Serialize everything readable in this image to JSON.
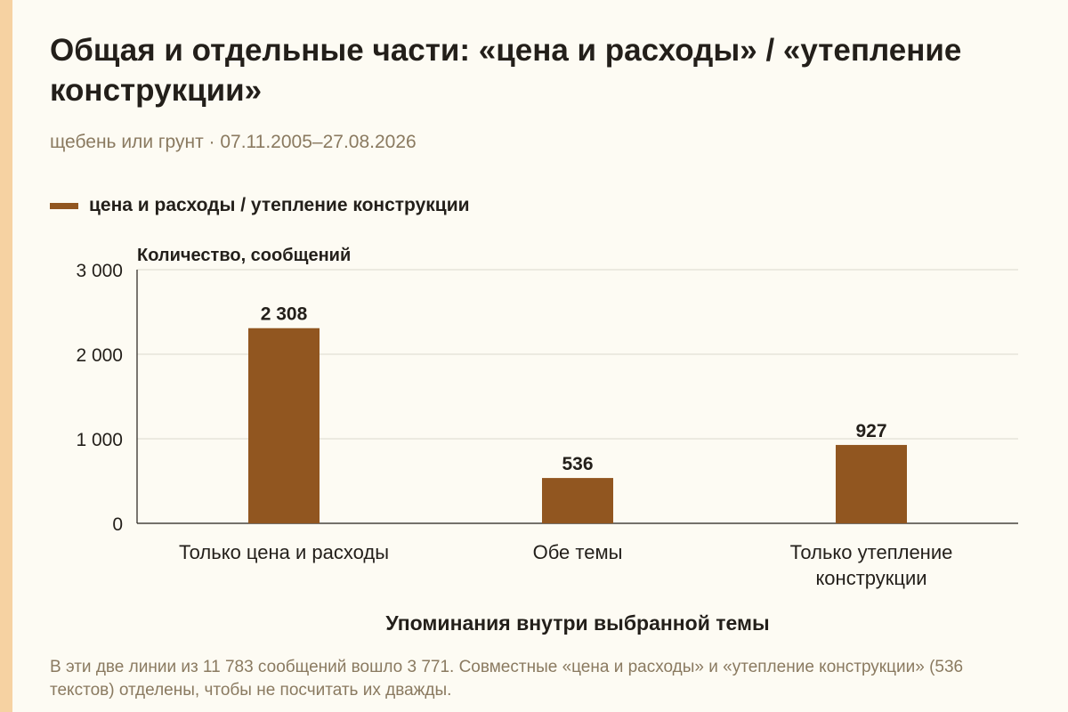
{
  "title": "Общая и отдельные части: «цена и расходы» / «утепление конструкции»",
  "subtitle": "щебень или грунт · 07.11.2005–27.08.2026",
  "colors": {
    "bar": "#915620",
    "stripe": "#f6d2a2",
    "background": "#fdfbf3"
  },
  "chart_data": {
    "type": "bar",
    "categories": [
      "Только цена и расходы",
      "Обе темы",
      "Только утепление конструкции"
    ],
    "category_lines": [
      [
        "Только цена и расходы"
      ],
      [
        "Обе темы"
      ],
      [
        "Только утепление",
        "конструкции"
      ]
    ],
    "series": [
      {
        "name": "цена и расходы / утепление конструкции",
        "values": [
          2308,
          536,
          927
        ]
      }
    ],
    "value_labels": [
      "2 308",
      "536",
      "927"
    ],
    "ylabel": "Количество, сообщений",
    "xlabel": "Упоминания внутри выбранной темы",
    "ylim": [
      0,
      3000
    ],
    "yticks": [
      0,
      1000,
      2000,
      3000
    ],
    "ytick_labels": [
      "0",
      "1 000",
      "2 000",
      "3 000"
    ],
    "grid": true,
    "legend": "top-left"
  },
  "note": "В эти две линии из 11 783 сообщений вошло 3 771. Совместные «цена и расходы» и «утепление конструкции» (536 текстов) отделены, чтобы не посчитать их дважды."
}
